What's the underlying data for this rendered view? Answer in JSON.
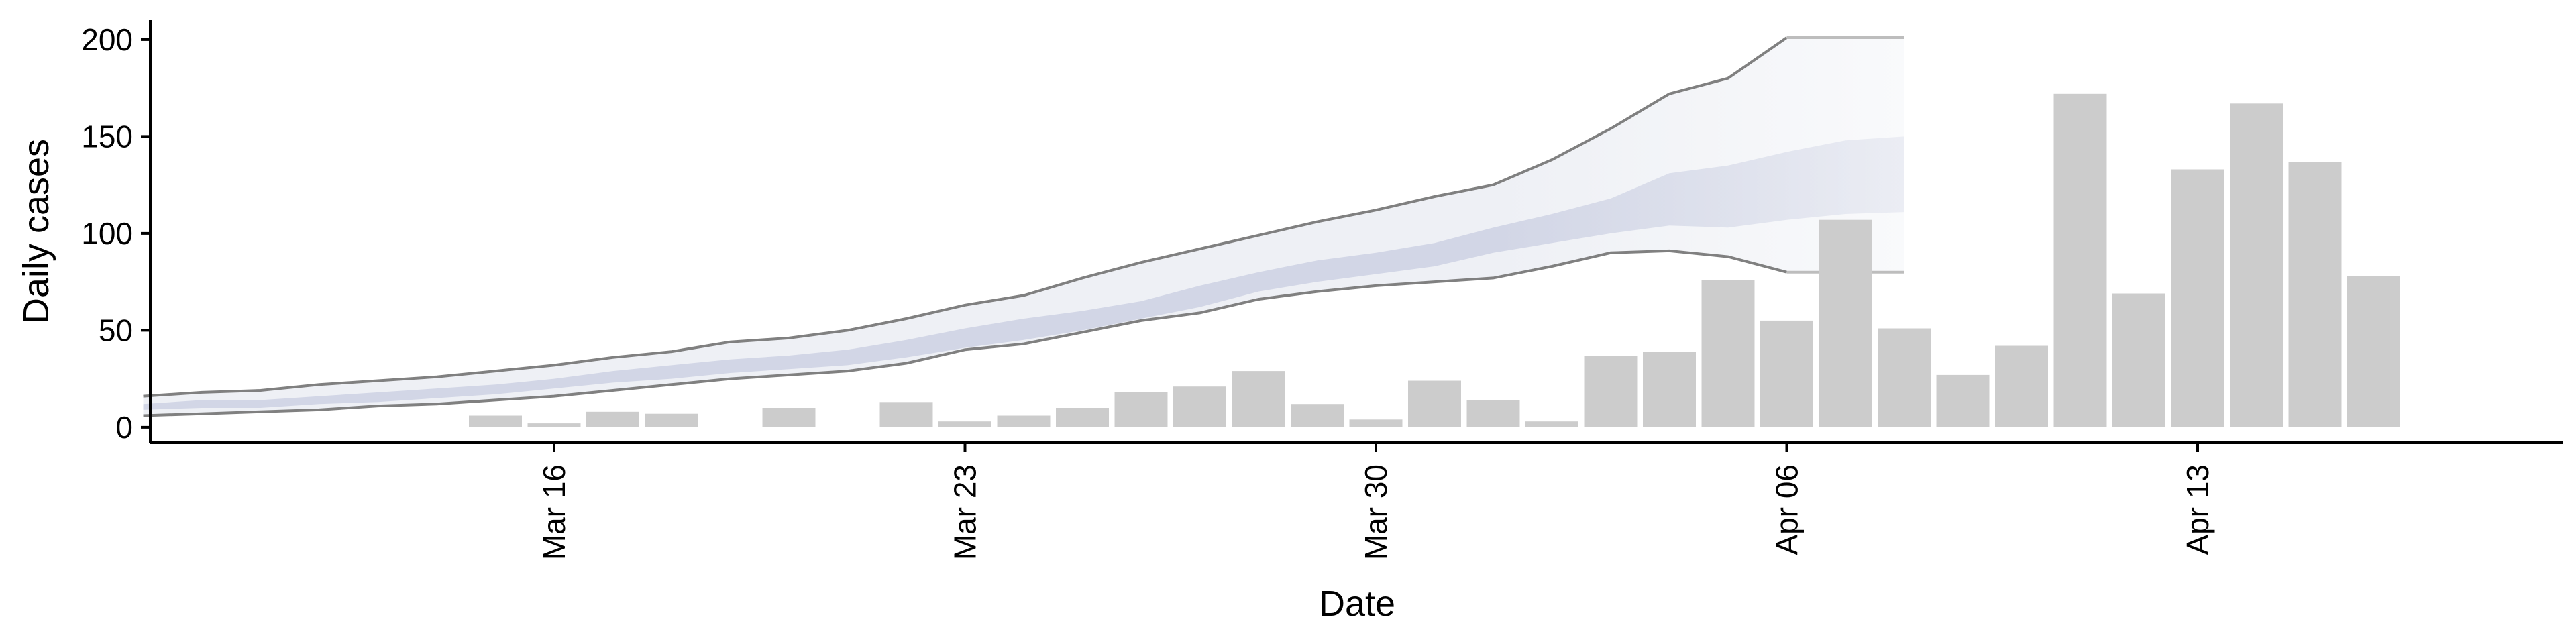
{
  "chart_data": {
    "type": "bar",
    "xlabel": "Date",
    "ylabel": "Daily cases",
    "ylim": [
      -8,
      210
    ],
    "yticks": [
      0,
      50,
      100,
      150,
      200
    ],
    "xticks": [
      "Mar 16",
      "Mar 23",
      "Mar 30",
      "Apr 06",
      "Apr 13"
    ],
    "grid": false,
    "colors": {
      "bar": "#cccccc",
      "outer_band": "#eef0f5",
      "inner_band": "#d2d6e6",
      "band_edge": "#808080",
      "axis": "#000000"
    },
    "bars": {
      "dates": [
        "Mar 15",
        "Mar 16",
        "Mar 17",
        "Mar 18",
        "Mar 19",
        "Mar 20",
        "Mar 21",
        "Mar 22",
        "Mar 23",
        "Mar 24",
        "Mar 25",
        "Mar 26",
        "Mar 27",
        "Mar 28",
        "Mar 29",
        "Mar 30",
        "Mar 31",
        "Apr 01",
        "Apr 02",
        "Apr 03",
        "Apr 04",
        "Apr 05",
        "Apr 06",
        "Apr 07",
        "Apr 08",
        "Apr 09",
        "Apr 10",
        "Apr 11",
        "Apr 12",
        "Apr 13",
        "Apr 14",
        "Apr 15",
        "Apr 16",
        "Apr 17"
      ],
      "values": [
        6,
        2,
        8,
        7,
        0,
        10,
        0,
        13,
        3,
        6,
        10,
        18,
        21,
        29,
        12,
        4,
        24,
        14,
        3,
        37,
        39,
        76,
        55,
        107,
        51,
        27,
        42,
        172,
        69,
        133,
        167,
        137,
        78,
        0
      ]
    },
    "projection": {
      "dates": [
        "Mar 09",
        "Mar 10",
        "Mar 11",
        "Mar 12",
        "Mar 13",
        "Mar 14",
        "Mar 15",
        "Mar 16",
        "Mar 17",
        "Mar 18",
        "Mar 19",
        "Mar 20",
        "Mar 21",
        "Mar 22",
        "Mar 23",
        "Mar 24",
        "Mar 25",
        "Mar 26",
        "Mar 27",
        "Mar 28",
        "Mar 29",
        "Mar 30",
        "Mar 31",
        "Apr 01",
        "Apr 02",
        "Apr 03",
        "Apr 04",
        "Apr 05",
        "Apr 06",
        "Apr 07",
        "Apr 08"
      ],
      "outer_upper": [
        16,
        18,
        19,
        22,
        24,
        26,
        29,
        32,
        36,
        39,
        44,
        46,
        50,
        56,
        63,
        68,
        77,
        85,
        92,
        99,
        106,
        112,
        119,
        125,
        138,
        154,
        172,
        180,
        201,
        201,
        201
      ],
      "outer_lower": [
        6,
        7,
        8,
        9,
        11,
        12,
        14,
        16,
        19,
        22,
        25,
        27,
        29,
        33,
        40,
        43,
        49,
        55,
        59,
        66,
        70,
        73,
        75,
        77,
        83,
        90,
        91,
        88,
        80,
        80,
        80
      ],
      "inner_upper": [
        12,
        14,
        14,
        16,
        18,
        20,
        22,
        25,
        29,
        32,
        35,
        37,
        40,
        45,
        51,
        56,
        60,
        65,
        73,
        80,
        86,
        90,
        95,
        103,
        110,
        118,
        131,
        135,
        142,
        148,
        150
      ],
      "inner_lower": [
        9,
        10,
        10,
        12,
        13,
        15,
        17,
        20,
        23,
        25,
        28,
        30,
        32,
        36,
        41,
        45,
        50,
        56,
        62,
        70,
        75,
        79,
        83,
        90,
        95,
        100,
        104,
        103,
        107,
        110,
        111
      ]
    },
    "projection_end_index": 28
  }
}
